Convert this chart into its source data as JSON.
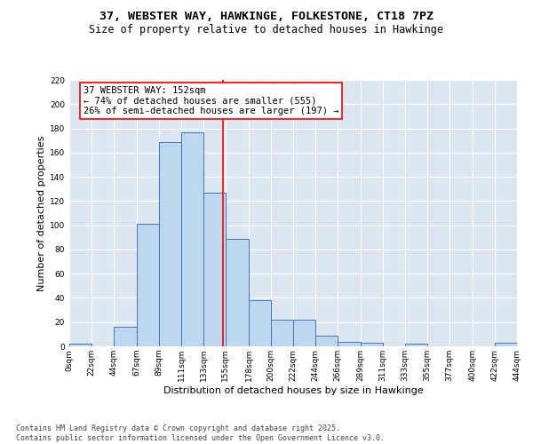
{
  "title_line1": "37, WEBSTER WAY, HAWKINGE, FOLKESTONE, CT18 7PZ",
  "title_line2": "Size of property relative to detached houses in Hawkinge",
  "xlabel": "Distribution of detached houses by size in Hawkinge",
  "ylabel": "Number of detached properties",
  "footer_line1": "Contains HM Land Registry data © Crown copyright and database right 2025.",
  "footer_line2": "Contains public sector information licensed under the Open Government Licence v3.0.",
  "bar_edges": [
    0,
    22,
    44,
    67,
    89,
    111,
    133,
    155,
    178,
    200,
    222,
    244,
    266,
    289,
    311,
    333,
    355,
    377,
    400,
    422,
    444
  ],
  "bar_heights": [
    2,
    0,
    16,
    101,
    169,
    177,
    127,
    89,
    38,
    22,
    22,
    9,
    4,
    3,
    0,
    2,
    0,
    0,
    0,
    3
  ],
  "bar_color": "#bdd7ee",
  "bar_edge_color": "#4472c4",
  "background_color": "#dce6f1",
  "annotation_text": "37 WEBSTER WAY: 152sqm\n← 74% of detached houses are smaller (555)\n26% of semi-detached houses are larger (197) →",
  "vline_x": 152,
  "ylim": [
    0,
    220
  ],
  "yticks": [
    0,
    20,
    40,
    60,
    80,
    100,
    120,
    140,
    160,
    180,
    200,
    220
  ],
  "xtick_labels": [
    "0sqm",
    "22sqm",
    "44sqm",
    "67sqm",
    "89sqm",
    "111sqm",
    "133sqm",
    "155sqm",
    "178sqm",
    "200sqm",
    "222sqm",
    "244sqm",
    "266sqm",
    "289sqm",
    "311sqm",
    "333sqm",
    "355sqm",
    "377sqm",
    "400sqm",
    "422sqm",
    "444sqm"
  ],
  "grid_color": "#ffffff",
  "title_fontsize": 9.5,
  "subtitle_fontsize": 8.5,
  "axis_label_fontsize": 8,
  "tick_fontsize": 6.5,
  "annotation_fontsize": 7.5,
  "footer_fontsize": 6.0
}
